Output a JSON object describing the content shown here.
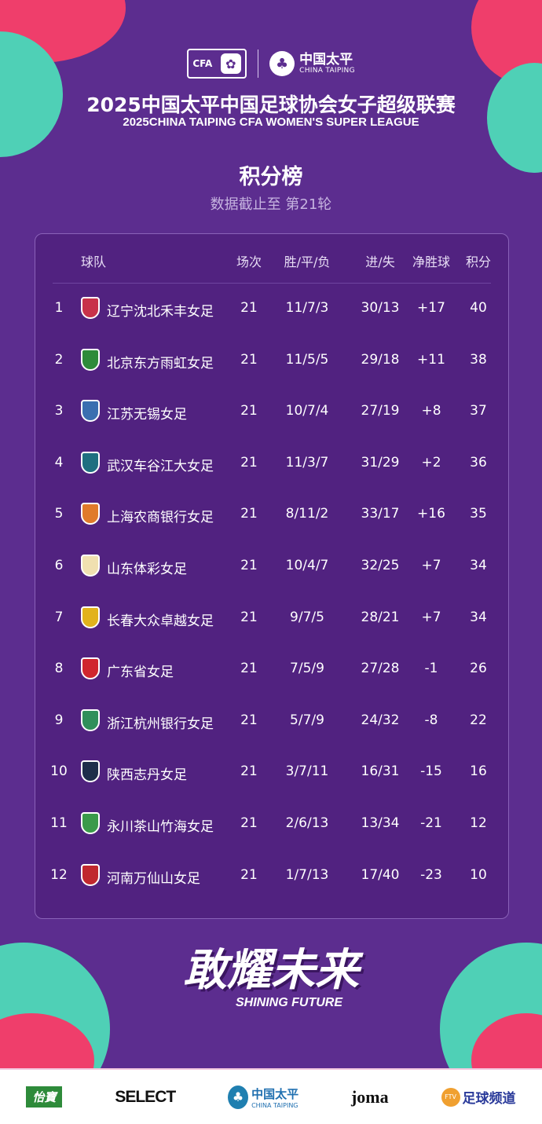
{
  "header": {
    "cfa_logo": "CFA",
    "sponsor_cn": "中国太平",
    "sponsor_en": "CHINA TAIPING",
    "title_cn": "2025中国太平中国足球协会女子超级联赛",
    "title_en": "2025CHINA TAIPING CFA WOMEN'S SUPER LEAGUE",
    "heading": "积分榜",
    "subtitle": "数据截止至 第21轮"
  },
  "table": {
    "columns": [
      "球队",
      "场次",
      "胜/平/负",
      "进/失",
      "净胜球",
      "积分"
    ],
    "rows": [
      {
        "rank": "1",
        "team": "辽宁沈北禾丰女足",
        "played": "21",
        "wdl": "11/7/3",
        "goals": "30/13",
        "gd": "+17",
        "pts": "40",
        "color": "#c8324a"
      },
      {
        "rank": "2",
        "team": "北京东方雨虹女足",
        "played": "21",
        "wdl": "11/5/5",
        "goals": "29/18",
        "gd": "+11",
        "pts": "38",
        "color": "#2e8b3a"
      },
      {
        "rank": "3",
        "team": "江苏无锡女足",
        "played": "21",
        "wdl": "10/7/4",
        "goals": "27/19",
        "gd": "+8",
        "pts": "37",
        "color": "#3a6fb0"
      },
      {
        "rank": "4",
        "team": "武汉车谷江大女足",
        "played": "21",
        "wdl": "11/3/7",
        "goals": "31/29",
        "gd": "+2",
        "pts": "36",
        "color": "#1f6f80"
      },
      {
        "rank": "5",
        "team": "上海农商银行女足",
        "played": "21",
        "wdl": "8/11/2",
        "goals": "33/17",
        "gd": "+16",
        "pts": "35",
        "color": "#e07a2a"
      },
      {
        "rank": "6",
        "team": "山东体彩女足",
        "played": "21",
        "wdl": "10/4/7",
        "goals": "32/25",
        "gd": "+7",
        "pts": "34",
        "color": "#f0e0b0"
      },
      {
        "rank": "7",
        "team": "长春大众卓越女足",
        "played": "21",
        "wdl": "9/7/5",
        "goals": "28/21",
        "gd": "+7",
        "pts": "34",
        "color": "#e2b21c"
      },
      {
        "rank": "8",
        "team": "广东省女足",
        "played": "21",
        "wdl": "7/5/9",
        "goals": "27/28",
        "gd": "-1",
        "pts": "26",
        "color": "#d0262e"
      },
      {
        "rank": "9",
        "team": "浙江杭州银行女足",
        "played": "21",
        "wdl": "5/7/9",
        "goals": "24/32",
        "gd": "-8",
        "pts": "22",
        "color": "#2f8f5a"
      },
      {
        "rank": "10",
        "team": "陕西志丹女足",
        "played": "21",
        "wdl": "3/7/11",
        "goals": "16/31",
        "gd": "-15",
        "pts": "16",
        "color": "#1d2e4a"
      },
      {
        "rank": "11",
        "team": "永川茶山竹海女足",
        "played": "21",
        "wdl": "2/6/13",
        "goals": "13/34",
        "gd": "-21",
        "pts": "12",
        "color": "#3a9a4a"
      },
      {
        "rank": "12",
        "team": "河南万仙山女足",
        "played": "21",
        "wdl": "1/7/13",
        "goals": "17/40",
        "gd": "-23",
        "pts": "10",
        "color": "#c0282e"
      }
    ]
  },
  "footer": {
    "slogan_cn": "敢耀未来",
    "slogan_en": "SHINING FUTURE",
    "sponsors": [
      "怡寶",
      "SELECT",
      "中国太平",
      "joma",
      "足球频道"
    ],
    "sponsor_ct_en": "CHINA TAIPING",
    "ftv": "FTV"
  }
}
